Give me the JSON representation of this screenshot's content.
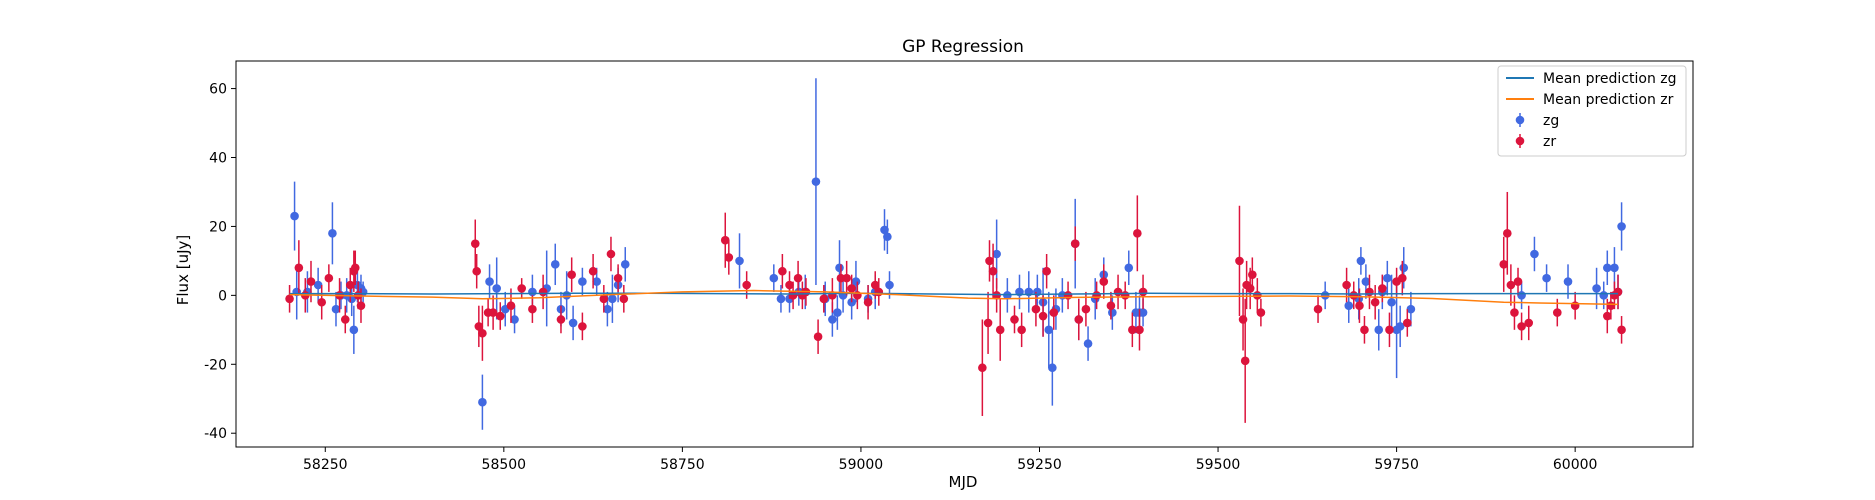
{
  "chart_data": {
    "type": "scatter",
    "title": "GP Regression",
    "xlabel": "MJD",
    "ylabel": "Flux [uJy]",
    "xlim": [
      58125,
      60165
    ],
    "ylim": [
      -44,
      68
    ],
    "xticks": [
      58250,
      58500,
      58750,
      59000,
      59250,
      59500,
      59750,
      60000
    ],
    "yticks": [
      -40,
      -20,
      0,
      20,
      40,
      60
    ],
    "grid": false,
    "legend_position": "top-right",
    "colors": {
      "zg_mean": "#1f77b4",
      "zr_mean": "#ff7f0e",
      "zg_points": "#4169e1",
      "zr_points": "#dc143c"
    },
    "lines": [
      {
        "name": "Mean prediction zg",
        "color": "#1f77b4",
        "x": [
          58200,
          58300,
          58400,
          58500,
          58600,
          58700,
          58800,
          58900,
          59000,
          59100,
          59200,
          59300,
          59400,
          59500,
          59600,
          59700,
          59800,
          59900,
          60000,
          60060
        ],
        "y": [
          0.5,
          0.5,
          0.4,
          0.5,
          0.6,
          0.6,
          0.5,
          0.4,
          0.6,
          0.4,
          0.2,
          0.4,
          0.6,
          0.5,
          0.5,
          0.4,
          0.5,
          0.5,
          0.5,
          0.5
        ]
      },
      {
        "name": "Mean prediction zr",
        "color": "#ff7f0e",
        "x": [
          58200,
          58300,
          58400,
          58470,
          58550,
          58650,
          58750,
          58850,
          58950,
          59050,
          59150,
          59200,
          59300,
          59400,
          59500,
          59600,
          59700,
          59800,
          59900,
          59950,
          60000,
          60060
        ],
        "y": [
          0.2,
          -0.2,
          -0.5,
          -1.0,
          -0.7,
          0.2,
          1.0,
          1.4,
          1.0,
          0.2,
          -0.8,
          -1.0,
          -0.6,
          -0.4,
          -0.3,
          -0.2,
          -0.4,
          -0.9,
          -2.0,
          -2.2,
          -2.4,
          -2.6
        ]
      }
    ],
    "series": [
      {
        "name": "zg",
        "color": "#4169e1",
        "x": [
          58207,
          58210,
          58225,
          58240,
          58260,
          58265,
          58272,
          58280,
          58287,
          58290,
          58295,
          58300,
          58303,
          58470,
          58480,
          58490,
          58502,
          58515,
          58540,
          58560,
          58572,
          58580,
          58588,
          58597,
          58610,
          58630,
          58645,
          58652,
          58660,
          58670,
          58830,
          58878,
          58888,
          58900,
          58913,
          58922,
          58937,
          58950,
          58960,
          58967,
          58970,
          58975,
          58987,
          58993,
          59010,
          59020,
          59033,
          59037,
          59040,
          59190,
          59205,
          59222,
          59235,
          59247,
          59255,
          59263,
          59268,
          59273,
          59282,
          59300,
          59305,
          59318,
          59328,
          59340,
          59352,
          59375,
          59385,
          59390,
          59395,
          59650,
          59683,
          59697,
          59700,
          59707,
          59725,
          59730,
          59737,
          59743,
          59750,
          59755,
          59760,
          59770,
          59925,
          59943,
          59960,
          59990,
          60030,
          60040,
          60045,
          60055,
          60060,
          60065
        ],
        "y": [
          23,
          1,
          1,
          3,
          18,
          -4,
          0,
          0,
          -1,
          -10,
          3,
          2,
          1,
          -31,
          4,
          2,
          -4,
          -7,
          1,
          2,
          9,
          -4,
          0,
          -8,
          4,
          4,
          -4,
          -1,
          3,
          9,
          10,
          5,
          -1,
          -1,
          1,
          1,
          33,
          -1,
          -7,
          -5,
          8,
          0,
          -2,
          4,
          -1,
          1,
          19,
          17,
          3,
          12,
          0,
          1,
          1,
          1,
          -2,
          -10,
          -21,
          -4,
          0,
          15,
          -7,
          -14,
          -1,
          6,
          -5,
          8,
          -5,
          -5,
          -5,
          0,
          -3,
          -1,
          10,
          4,
          -10,
          1,
          5,
          -2,
          -10,
          -9,
          8,
          -4,
          0,
          12,
          5,
          4,
          2,
          0,
          8,
          8,
          1,
          20
        ],
        "err": [
          10,
          8,
          6,
          5,
          9,
          5,
          4,
          5,
          5,
          7,
          5,
          4,
          3,
          8,
          5,
          9,
          5,
          4,
          5,
          11,
          6,
          5,
          7,
          5,
          4,
          4,
          5,
          7,
          5,
          5,
          8,
          4,
          4,
          4,
          4,
          5,
          30,
          5,
          5,
          5,
          8,
          5,
          5,
          6,
          4,
          5,
          6,
          5,
          4,
          10,
          5,
          5,
          6,
          5,
          10,
          11,
          11,
          6,
          5,
          13,
          6,
          5,
          6,
          5,
          5,
          5,
          6,
          5,
          4,
          4,
          5,
          6,
          4,
          5,
          6,
          5,
          5,
          8,
          14,
          6,
          6,
          5,
          4,
          5,
          4,
          5,
          6,
          4,
          5,
          6,
          5,
          7
        ]
      },
      {
        "name": "zr",
        "color": "#dc143c",
        "x": [
          58200,
          58213,
          58222,
          58230,
          58245,
          58255,
          58270,
          58278,
          58285,
          58290,
          58292,
          58296,
          58300,
          58460,
          58462,
          58465,
          58470,
          58478,
          58485,
          58495,
          58510,
          58525,
          58540,
          58555,
          58580,
          58595,
          58610,
          58625,
          58640,
          58650,
          58660,
          58668,
          58810,
          58815,
          58840,
          58890,
          58900,
          58905,
          58912,
          58918,
          58923,
          58940,
          58948,
          58960,
          58972,
          58980,
          58987,
          58995,
          59010,
          59020,
          59025,
          59170,
          59178,
          59180,
          59185,
          59190,
          59195,
          59215,
          59225,
          59245,
          59255,
          59260,
          59270,
          59290,
          59300,
          59305,
          59315,
          59330,
          59340,
          59350,
          59360,
          59370,
          59380,
          59387,
          59390,
          59395,
          59530,
          59535,
          59538,
          59540,
          59545,
          59548,
          59555,
          59560,
          59640,
          59680,
          59690,
          59698,
          59705,
          59712,
          59720,
          59730,
          59740,
          59750,
          59758,
          59765,
          59900,
          59905,
          59910,
          59915,
          59920,
          59925,
          59935,
          59975,
          60000,
          60045,
          60050,
          60055,
          60060,
          60065
        ],
        "y": [
          -1,
          8,
          0,
          4,
          -2,
          5,
          0,
          -7,
          3,
          7,
          8,
          0,
          -3,
          15,
          7,
          -9,
          -11,
          -5,
          -5,
          -6,
          -3,
          2,
          -4,
          1,
          -7,
          6,
          -9,
          7,
          -1,
          12,
          5,
          -1,
          16,
          11,
          3,
          7,
          3,
          0,
          5,
          0,
          1,
          -12,
          -1,
          0,
          5,
          5,
          2,
          0,
          -2,
          3,
          1,
          -21,
          -8,
          10,
          7,
          0,
          -10,
          -7,
          -10,
          -4,
          -6,
          7,
          -5,
          0,
          15,
          -7,
          -4,
          0,
          4,
          -3,
          1,
          0,
          -10,
          18,
          -10,
          1,
          10,
          -7,
          -19,
          3,
          2,
          6,
          0,
          -5,
          -4,
          3,
          0,
          -3,
          -10,
          1,
          -2,
          2,
          -10,
          4,
          5,
          -8,
          9,
          18,
          3,
          -5,
          4,
          -9,
          -8,
          -5,
          -3,
          -6,
          -3,
          0,
          1,
          -10
        ],
        "err": [
          4,
          8,
          5,
          6,
          5,
          4,
          5,
          4,
          5,
          6,
          5,
          4,
          5,
          7,
          5,
          6,
          8,
          4,
          5,
          4,
          5,
          3,
          4,
          5,
          4,
          5,
          4,
          5,
          4,
          5,
          4,
          4,
          8,
          5,
          4,
          5,
          4,
          4,
          5,
          4,
          4,
          5,
          4,
          5,
          4,
          5,
          4,
          4,
          5,
          4,
          4,
          14,
          9,
          6,
          8,
          5,
          9,
          4,
          5,
          5,
          6,
          5,
          5,
          4,
          5,
          6,
          5,
          4,
          5,
          4,
          5,
          4,
          5,
          11,
          6,
          5,
          16,
          9,
          18,
          7,
          6,
          5,
          5,
          4,
          4,
          5,
          4,
          5,
          4,
          5,
          5,
          4,
          5,
          4,
          5,
          4,
          8,
          12,
          6,
          5,
          4,
          4,
          5,
          4,
          4,
          5,
          4,
          4,
          5,
          4
        ]
      }
    ],
    "legend": [
      {
        "label": "Mean prediction zg",
        "kind": "line",
        "color": "#1f77b4"
      },
      {
        "label": "Mean prediction zr",
        "kind": "line",
        "color": "#ff7f0e"
      },
      {
        "label": "zg",
        "kind": "errorbar",
        "color": "#4169e1"
      },
      {
        "label": "zr",
        "kind": "errorbar",
        "color": "#dc143c"
      }
    ]
  }
}
